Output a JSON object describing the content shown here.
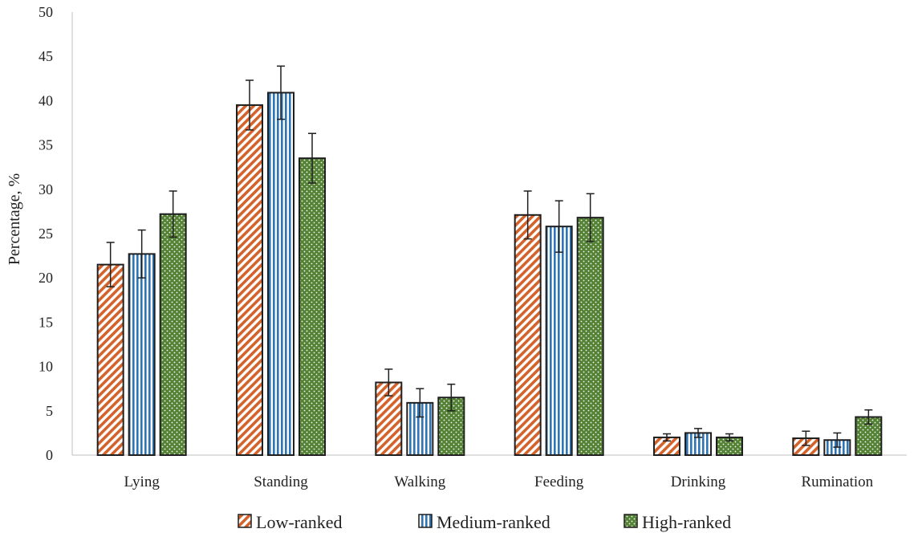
{
  "chart_data": {
    "type": "bar",
    "title": "",
    "xlabel": "",
    "ylabel": "Percentage, %",
    "ylim": [
      0,
      50
    ],
    "yticks": [
      0,
      5,
      10,
      15,
      20,
      25,
      30,
      35,
      40,
      45,
      50
    ],
    "grid": false,
    "legend_position": "bottom",
    "categories": [
      "Lying",
      "Standing",
      "Walking",
      "Feeding",
      "Drinking",
      "Rumination"
    ],
    "series": [
      {
        "name": "Low-ranked",
        "color": "#d4622b",
        "pattern": "diagonal-stripes",
        "values": [
          21.5,
          39.5,
          8.2,
          27.1,
          2.0,
          1.9
        ],
        "errors": [
          2.5,
          2.8,
          1.5,
          2.7,
          0.4,
          0.8
        ]
      },
      {
        "name": "Medium-ranked",
        "color": "#2e75b6",
        "pattern": "vertical-stripes",
        "values": [
          22.7,
          40.9,
          5.9,
          25.8,
          2.5,
          1.7
        ],
        "errors": [
          2.7,
          3.0,
          1.6,
          2.9,
          0.5,
          0.8
        ]
      },
      {
        "name": "High-ranked",
        "color": "#548235",
        "pattern": "dots",
        "values": [
          27.2,
          33.5,
          6.5,
          26.8,
          2.0,
          4.3
        ],
        "errors": [
          2.6,
          2.8,
          1.5,
          2.7,
          0.4,
          0.8
        ]
      }
    ]
  }
}
